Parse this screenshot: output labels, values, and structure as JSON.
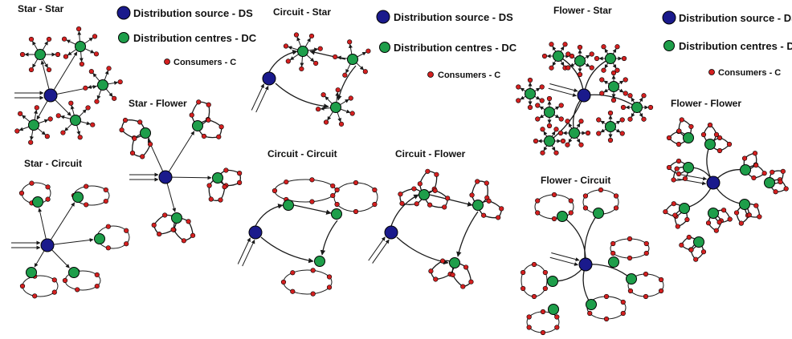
{
  "diagrams": [
    {
      "id": "star-star",
      "title": "Star - Star"
    },
    {
      "id": "star-flower",
      "title": "Star - Flower"
    },
    {
      "id": "star-circuit",
      "title": "Star - Circuit"
    },
    {
      "id": "circuit-star",
      "title": "Circuit - Star"
    },
    {
      "id": "circuit-circuit",
      "title": "Circuit - Circuit"
    },
    {
      "id": "circuit-flower",
      "title": "Circuit - Flower"
    },
    {
      "id": "flower-star",
      "title": "Flower - Star"
    },
    {
      "id": "flower-circuit",
      "title": "Flower - Circuit"
    },
    {
      "id": "flower-flower",
      "title": "Flower - Flower"
    }
  ],
  "legend": {
    "ds": "Distribution source - DS",
    "dc": "Distribution centres - DC",
    "c": "Consumers - C"
  },
  "colors": {
    "ds": "#1a1a8c",
    "dc": "#1e9e4a",
    "consumer": "#d42020",
    "edge": "#1a1a1a"
  }
}
